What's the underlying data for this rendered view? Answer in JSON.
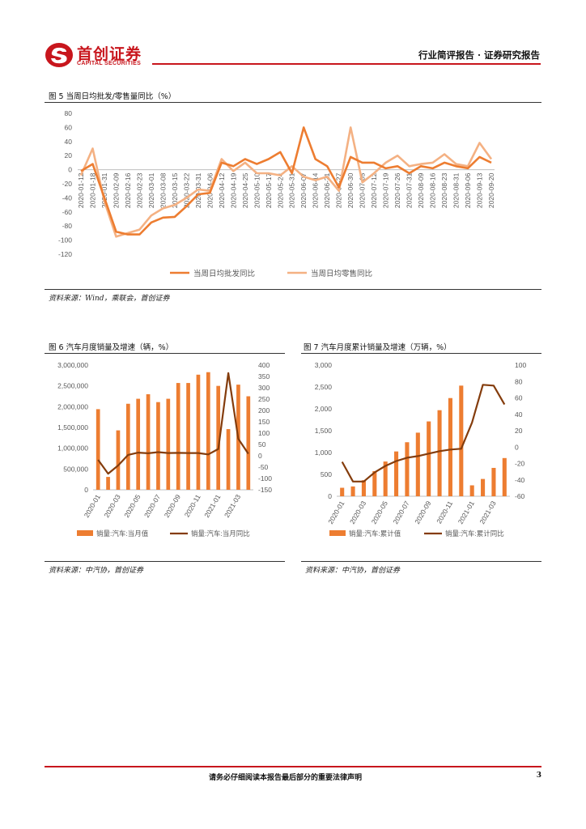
{
  "header": {
    "logo_name": "首创证券",
    "logo_en": "CAPITAL SECURITIES",
    "right_title": "行业简评报告 · 证券研究报告",
    "colors": {
      "brand_red": "#c8161d"
    }
  },
  "fig5": {
    "title": "图 5 当周日均批发/零售量同比（%）",
    "source": "资料来源：Wind，乘联会，首创证券"
  },
  "fig6": {
    "title": "图 6 汽车月度销量及增速（辆，%）",
    "source": "资料来源：中汽协，首创证券"
  },
  "fig7": {
    "title": "图 7 汽车月度累计销量及增速（万辆，%）",
    "source": "资料来源：中汽协，首创证券"
  },
  "footer": {
    "text": "请务必仔细阅读本报告最后部分的重要法律声明",
    "page": "3"
  },
  "chart_data": [
    {
      "id": "fig5",
      "type": "line",
      "title": "当周日均批发/零售量同比（%）",
      "x": [
        "2020-01-12",
        "2020-01-18",
        "2020-01-31",
        "2020-02-09",
        "2020-02-16",
        "2020-02-23",
        "2020-03-01",
        "2020-03-08",
        "2020-03-15",
        "2020-03-22",
        "2020-03-31",
        "2020-04-06",
        "2020-04-12",
        "2020-04-19",
        "2020-04-25",
        "2020-05-10",
        "2020-05-17",
        "2020-05-24",
        "2020-05-31",
        "2020-06-07",
        "2020-06-14",
        "2020-06-21",
        "2020-06-27",
        "2020-06-30",
        "2020-07-05",
        "2020-07-12",
        "2020-07-19",
        "2020-07-26",
        "2020-07-31",
        "2020-08-09",
        "2020-08-16",
        "2020-08-23",
        "2020-08-31",
        "2020-09-06",
        "2020-09-13",
        "2020-09-20"
      ],
      "series": [
        {
          "name": "当周日均批发同比",
          "color": "#ed7d31",
          "values": [
            -2,
            8,
            -40,
            -88,
            -92,
            -92,
            -75,
            -68,
            -67,
            -52,
            -35,
            -33,
            10,
            5,
            15,
            8,
            15,
            25,
            -5,
            60,
            15,
            5,
            -25,
            18,
            10,
            10,
            2,
            5,
            -5,
            5,
            2,
            10,
            5,
            2,
            18,
            10
          ]
        },
        {
          "name": "当周日均零售同比",
          "color": "#f4b183",
          "values": [
            -8,
            30,
            -45,
            -95,
            -90,
            -85,
            -65,
            -55,
            -50,
            -40,
            -28,
            -30,
            15,
            -2,
            10,
            -5,
            -5,
            -8,
            5,
            -10,
            -15,
            -10,
            -30,
            60,
            -18,
            -5,
            10,
            20,
            5,
            8,
            10,
            22,
            8,
            5,
            38,
            15
          ]
        }
      ],
      "ylim": [
        -120,
        80
      ],
      "yticks": [
        -120,
        -100,
        -80,
        -60,
        -40,
        -20,
        0,
        20,
        40,
        60,
        80
      ]
    },
    {
      "id": "fig6",
      "type": "bar",
      "title": "汽车月度销量及增速（辆，%）",
      "categories": [
        "2020-01",
        "2020-02",
        "2020-03",
        "2020-04",
        "2020-05",
        "2020-06",
        "2020-07",
        "2020-08",
        "2020-09",
        "2020-10",
        "2020-11",
        "2020-12",
        "2021-01",
        "2021-02",
        "2021-03",
        "2021-04"
      ],
      "xticks": [
        "2020-01",
        "2020-03",
        "2020-05",
        "2020-07",
        "2020-09",
        "2020-11",
        "2021-01",
        "2021-03"
      ],
      "series": [
        {
          "name": "销量:汽车:当月值",
          "type": "bar",
          "color": "#ed7d31",
          "values": [
            1940000,
            310000,
            1430000,
            2070000,
            2190000,
            2300000,
            2110000,
            2190000,
            2570000,
            2570000,
            2770000,
            2830000,
            2500000,
            1460000,
            2530000,
            2250000
          ]
        },
        {
          "name": "销量:汽车:当月同比",
          "type": "line",
          "axis": "right",
          "color": "#843c0c",
          "values": [
            -18,
            -79,
            -43,
            4,
            14,
            11,
            16,
            12,
            13,
            12,
            12,
            6,
            30,
            365,
            75,
            9
          ]
        }
      ],
      "ylim": [
        0,
        3000000
      ],
      "yticks": [
        "0",
        "500,000",
        "1,000,000",
        "1,500,000",
        "2,000,000",
        "2,500,000",
        "3,000,000"
      ],
      "y2lim": [
        -150,
        400
      ],
      "y2ticks": [
        "-150",
        "-100",
        "-50",
        "0",
        "50",
        "100",
        "150",
        "200",
        "250",
        "300",
        "350",
        "400"
      ]
    },
    {
      "id": "fig7",
      "type": "bar",
      "title": "汽车月度累计销量及增速（万辆，%）",
      "categories": [
        "2020-01",
        "2020-02",
        "2020-03",
        "2020-04",
        "2020-05",
        "2020-06",
        "2020-07",
        "2020-08",
        "2020-09",
        "2020-10",
        "2020-11",
        "2020-12",
        "2021-01",
        "2021-02",
        "2021-03",
        "2021-04"
      ],
      "xticks": [
        "2020-01",
        "2020-03",
        "2020-05",
        "2020-07",
        "2020-09",
        "2020-11",
        "2021-01",
        "2021-03"
      ],
      "series": [
        {
          "name": "销量:汽车:累计值",
          "type": "bar",
          "color": "#ed7d31",
          "values": [
            194,
            225,
            367,
            575,
            795,
            1025,
            1236,
            1455,
            1712,
            1969,
            2246,
            2531,
            250,
            396,
            649,
            874
          ]
        },
        {
          "name": "销量:汽车:累计同比",
          "type": "line",
          "axis": "right",
          "color": "#843c0c",
          "values": [
            -18,
            -42,
            -42,
            -31,
            -23,
            -17,
            -13,
            -11,
            -8,
            -5,
            -3,
            -2,
            30,
            76,
            75,
            52
          ]
        }
      ],
      "ylim": [
        0,
        3000
      ],
      "yticks": [
        "0",
        "500",
        "1,000",
        "1,500",
        "2,000",
        "2,500",
        "3,000"
      ],
      "y2lim": [
        -60,
        100
      ],
      "y2ticks": [
        "-60",
        "-40",
        "-20",
        "0",
        "20",
        "40",
        "60",
        "80",
        "100"
      ]
    }
  ]
}
